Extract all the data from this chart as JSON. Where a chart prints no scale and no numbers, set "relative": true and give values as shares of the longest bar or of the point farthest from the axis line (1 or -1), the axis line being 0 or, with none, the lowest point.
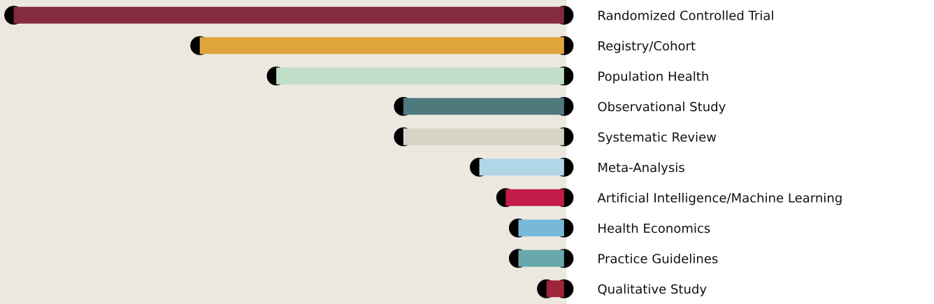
{
  "chart_data": {
    "type": "bar",
    "orientation": "horizontal",
    "relative": true,
    "marker": "circle",
    "categories": [
      "Randomized Controlled Trial",
      "Registry/Cohort",
      "Population Health",
      "Observational Study",
      "Systematic Review",
      "Meta-Analysis",
      "Artificial Intelligence/Machine Learning",
      "Health Economics",
      "Practice Guidelines",
      "Qualitative Study"
    ],
    "values": [
      -1,
      -0.662,
      -0.523,
      -0.292,
      -0.292,
      -0.154,
      -0.106,
      -0.083,
      -0.083,
      -0.032
    ],
    "colors": [
      "#842b40",
      "#dea63a",
      "#c0dec8",
      "#4e7a7e",
      "#d7d3c7",
      "#b1d6e8",
      "#c31c4a",
      "#78b8d9",
      "#68a8ac",
      "#a0243a"
    ]
  }
}
